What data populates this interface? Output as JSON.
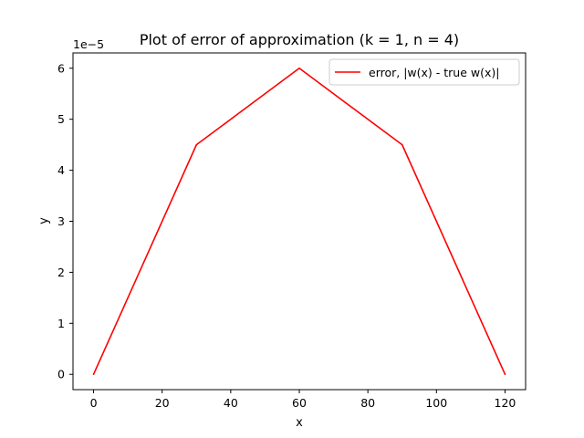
{
  "chart_data": {
    "type": "line",
    "title": "Plot of error of approximation (k = 1, n = 4)",
    "xlabel": "x",
    "ylabel": "y",
    "y_offset_label": "1e−5",
    "x_ticks": [
      0,
      20,
      40,
      60,
      80,
      100,
      120
    ],
    "y_ticks": [
      0,
      1,
      2,
      3,
      4,
      5,
      6
    ],
    "xlim": [
      -6,
      126
    ],
    "ylim": [
      -0.3,
      6.3
    ],
    "y_units_scale": "1e-5",
    "grid": false,
    "legend_position": "top-right",
    "series": [
      {
        "name": "error, |w(x) - true w(x)|",
        "color": "#ff0000",
        "x": [
          0,
          30,
          60,
          90,
          120
        ],
        "y": [
          0,
          4.5,
          6.0,
          4.5,
          0
        ]
      }
    ]
  }
}
